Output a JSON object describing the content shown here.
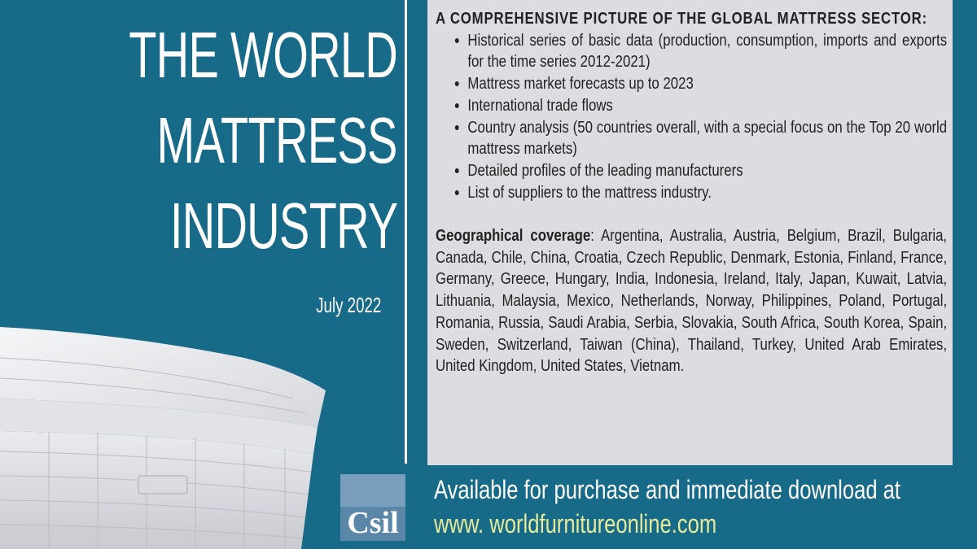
{
  "title": {
    "lines": [
      "THE WORLD",
      "MATTRESS",
      "INDUSTRY"
    ],
    "date": "July 2022"
  },
  "panel": {
    "heading": "A COMPREHENSIVE PICTURE OF THE GLOBAL MATTRESS SECTOR:",
    "bullets": [
      "Historical series of basic data (production, consumption, imports and exports for the time series 2012-2021)",
      "Mattress market forecasts up to 2023",
      "International trade flows",
      "Country analysis (50 countries overall, with a special focus on the Top 20 world mattress markets)",
      "Detailed profiles of the leading manufacturers",
      "List of suppliers to the mattress industry."
    ],
    "coverage_label": "Geographical coverage",
    "coverage_text": ": Argentina, Australia, Austria, Belgium, Brazil, Bulgaria, Canada, Chile, China, Croatia, Czech Republic, Denmark, Estonia, Finland, France, Germany, Greece, Hungary, India, Indonesia, Ireland, Italy, Japan, Kuwait, Latvia, Lithuania, Malaysia, Mexico, Netherlands, Norway, Philippines, Poland, Portugal, Romania, Russia, Saudi Arabia, Serbia, Slovakia, South Africa, South Korea, Spain, Sweden, Switzerland, Taiwan (China), Thailand, Turkey, United Arab Emirates, United Kingdom, United States, Vietnam."
  },
  "footer": {
    "line1": "Available for purchase and immediate download at",
    "url": "www. worldfurnitureonline.com"
  },
  "logo": {
    "text": "Csil"
  }
}
